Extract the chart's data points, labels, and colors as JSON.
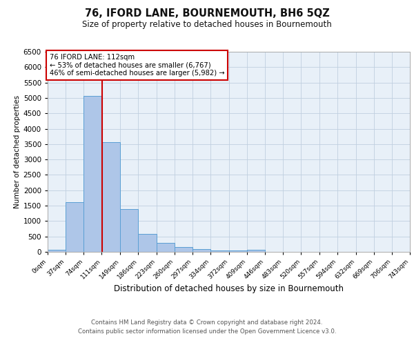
{
  "title": "76, IFORD LANE, BOURNEMOUTH, BH6 5QZ",
  "subtitle": "Size of property relative to detached houses in Bournemouth",
  "xlabel": "Distribution of detached houses by size in Bournemouth",
  "ylabel": "Number of detached properties",
  "property_size": 112,
  "property_label": "76 IFORD LANE: 112sqm",
  "annotation_line1": "← 53% of detached houses are smaller (6,767)",
  "annotation_line2": "46% of semi-detached houses are larger (5,982) →",
  "bin_edges": [
    0,
    37,
    74,
    111,
    149,
    186,
    223,
    260,
    297,
    334,
    372,
    409,
    446,
    483,
    520,
    557,
    594,
    632,
    669,
    706,
    743
  ],
  "bin_counts": [
    75,
    1625,
    5075,
    3575,
    1400,
    575,
    290,
    150,
    85,
    45,
    45,
    75,
    0,
    0,
    0,
    0,
    0,
    0,
    0,
    0
  ],
  "bar_color": "#aec6e8",
  "bar_edge_color": "#5a9fd4",
  "vline_color": "#cc0000",
  "annotation_box_color": "#cc0000",
  "grid_color": "#c0cfe0",
  "background_color": "#e8f0f8",
  "ylim": [
    0,
    6500
  ],
  "yticks": [
    0,
    500,
    1000,
    1500,
    2000,
    2500,
    3000,
    3500,
    4000,
    4500,
    5000,
    5500,
    6000,
    6500
  ],
  "footer_line1": "Contains HM Land Registry data © Crown copyright and database right 2024.",
  "footer_line2": "Contains public sector information licensed under the Open Government Licence v3.0."
}
